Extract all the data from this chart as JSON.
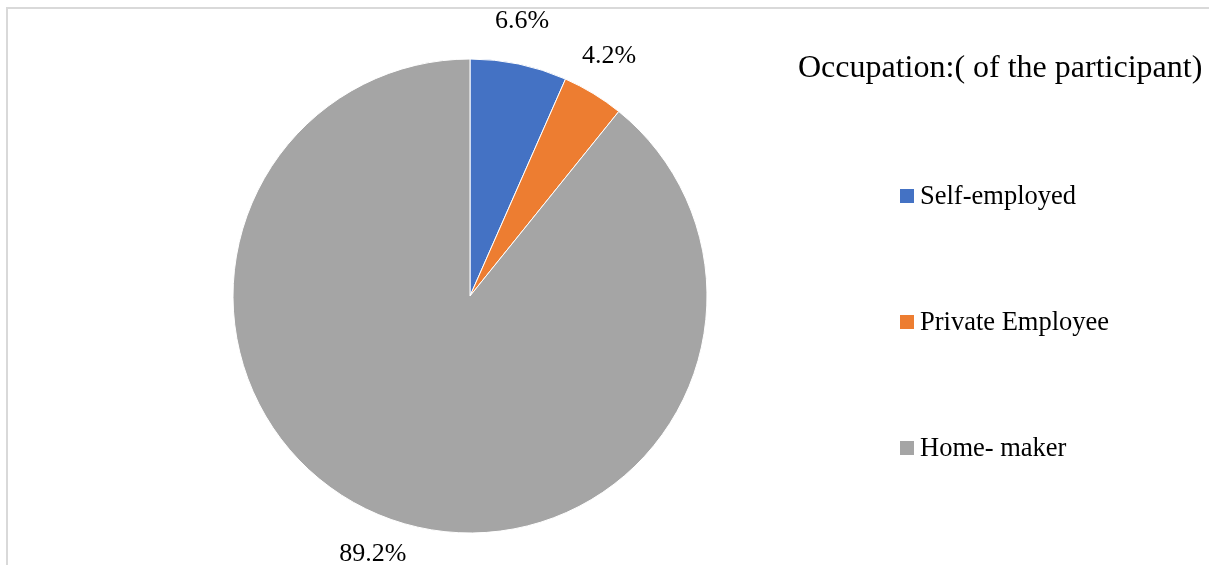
{
  "chart_data": {
    "type": "pie",
    "title": "Occupation:( of the participant)",
    "categories": [
      "Self-employed",
      "Private Employee",
      "Home- maker"
    ],
    "values": [
      6.6,
      4.2,
      89.2
    ],
    "colors": [
      "#4472c4",
      "#ed7d31",
      "#a5a5a5"
    ],
    "value_labels": [
      "6.6%",
      "4.2%",
      "89.2%"
    ],
    "legend": "right"
  }
}
